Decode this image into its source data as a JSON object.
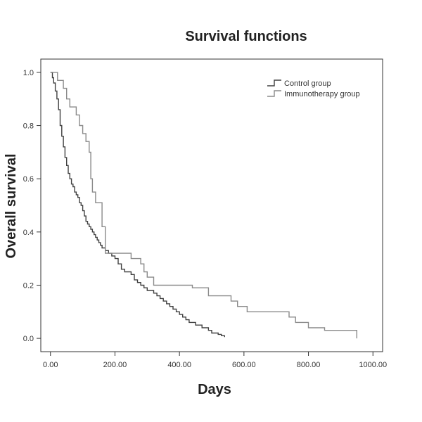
{
  "chart_data": {
    "type": "line",
    "step": true,
    "title": "Survival functions",
    "xlabel": "Days",
    "ylabel": "Overall survival",
    "xlim": [
      -30,
      1030
    ],
    "ylim": [
      -0.05,
      1.05
    ],
    "x_ticks": [
      0,
      200,
      400,
      600,
      800,
      1000
    ],
    "x_tick_labels": [
      "0.00",
      "200.00",
      "400.00",
      "600.00",
      "800.00",
      "1000.00"
    ],
    "y_ticks": [
      0,
      0.2,
      0.4,
      0.6,
      0.8,
      1.0
    ],
    "y_tick_labels": [
      "0.0",
      "0.2",
      "0.4",
      "0.6",
      "0.8",
      "1.0"
    ],
    "grid": false,
    "legend_position": "top-right",
    "series": [
      {
        "name": "Control group",
        "color": "#404040",
        "x": [
          0,
          6,
          10,
          15,
          20,
          25,
          30,
          35,
          40,
          45,
          50,
          55,
          60,
          65,
          70,
          75,
          80,
          85,
          90,
          95,
          100,
          105,
          110,
          115,
          120,
          125,
          130,
          135,
          140,
          145,
          150,
          155,
          160,
          165,
          170,
          175,
          180,
          190,
          200,
          210,
          220,
          230,
          240,
          250,
          260,
          270,
          280,
          290,
          300,
          310,
          320,
          330,
          340,
          350,
          360,
          370,
          380,
          390,
          400,
          410,
          420,
          430,
          440,
          450,
          460,
          470,
          480,
          490,
          500,
          510,
          520,
          530,
          540
        ],
        "y": [
          1.0,
          0.98,
          0.96,
          0.93,
          0.9,
          0.86,
          0.8,
          0.76,
          0.72,
          0.68,
          0.65,
          0.62,
          0.6,
          0.58,
          0.57,
          0.55,
          0.54,
          0.53,
          0.51,
          0.5,
          0.48,
          0.46,
          0.44,
          0.43,
          0.42,
          0.41,
          0.4,
          0.39,
          0.38,
          0.37,
          0.36,
          0.35,
          0.34,
          0.34,
          0.33,
          0.33,
          0.32,
          0.31,
          0.3,
          0.28,
          0.26,
          0.25,
          0.25,
          0.24,
          0.22,
          0.21,
          0.2,
          0.19,
          0.18,
          0.18,
          0.17,
          0.16,
          0.15,
          0.14,
          0.13,
          0.12,
          0.11,
          0.1,
          0.09,
          0.08,
          0.07,
          0.06,
          0.06,
          0.05,
          0.05,
          0.04,
          0.04,
          0.03,
          0.02,
          0.02,
          0.015,
          0.01,
          0.005
        ]
      },
      {
        "name": "Immunotherapy group",
        "color": "#8a8a8a",
        "x": [
          0,
          22,
          40,
          50,
          60,
          80,
          90,
          100,
          110,
          120,
          125,
          130,
          140,
          160,
          170,
          200,
          250,
          280,
          290,
          300,
          320,
          340,
          400,
          440,
          490,
          550,
          560,
          580,
          610,
          640,
          700,
          740,
          760,
          800,
          850,
          900,
          950
        ],
        "y": [
          1.0,
          0.97,
          0.94,
          0.9,
          0.87,
          0.84,
          0.8,
          0.77,
          0.74,
          0.7,
          0.6,
          0.55,
          0.51,
          0.42,
          0.32,
          0.32,
          0.3,
          0.28,
          0.25,
          0.23,
          0.2,
          0.2,
          0.2,
          0.19,
          0.16,
          0.16,
          0.14,
          0.12,
          0.1,
          0.1,
          0.1,
          0.08,
          0.06,
          0.04,
          0.03,
          0.03,
          0.0
        ]
      }
    ]
  }
}
